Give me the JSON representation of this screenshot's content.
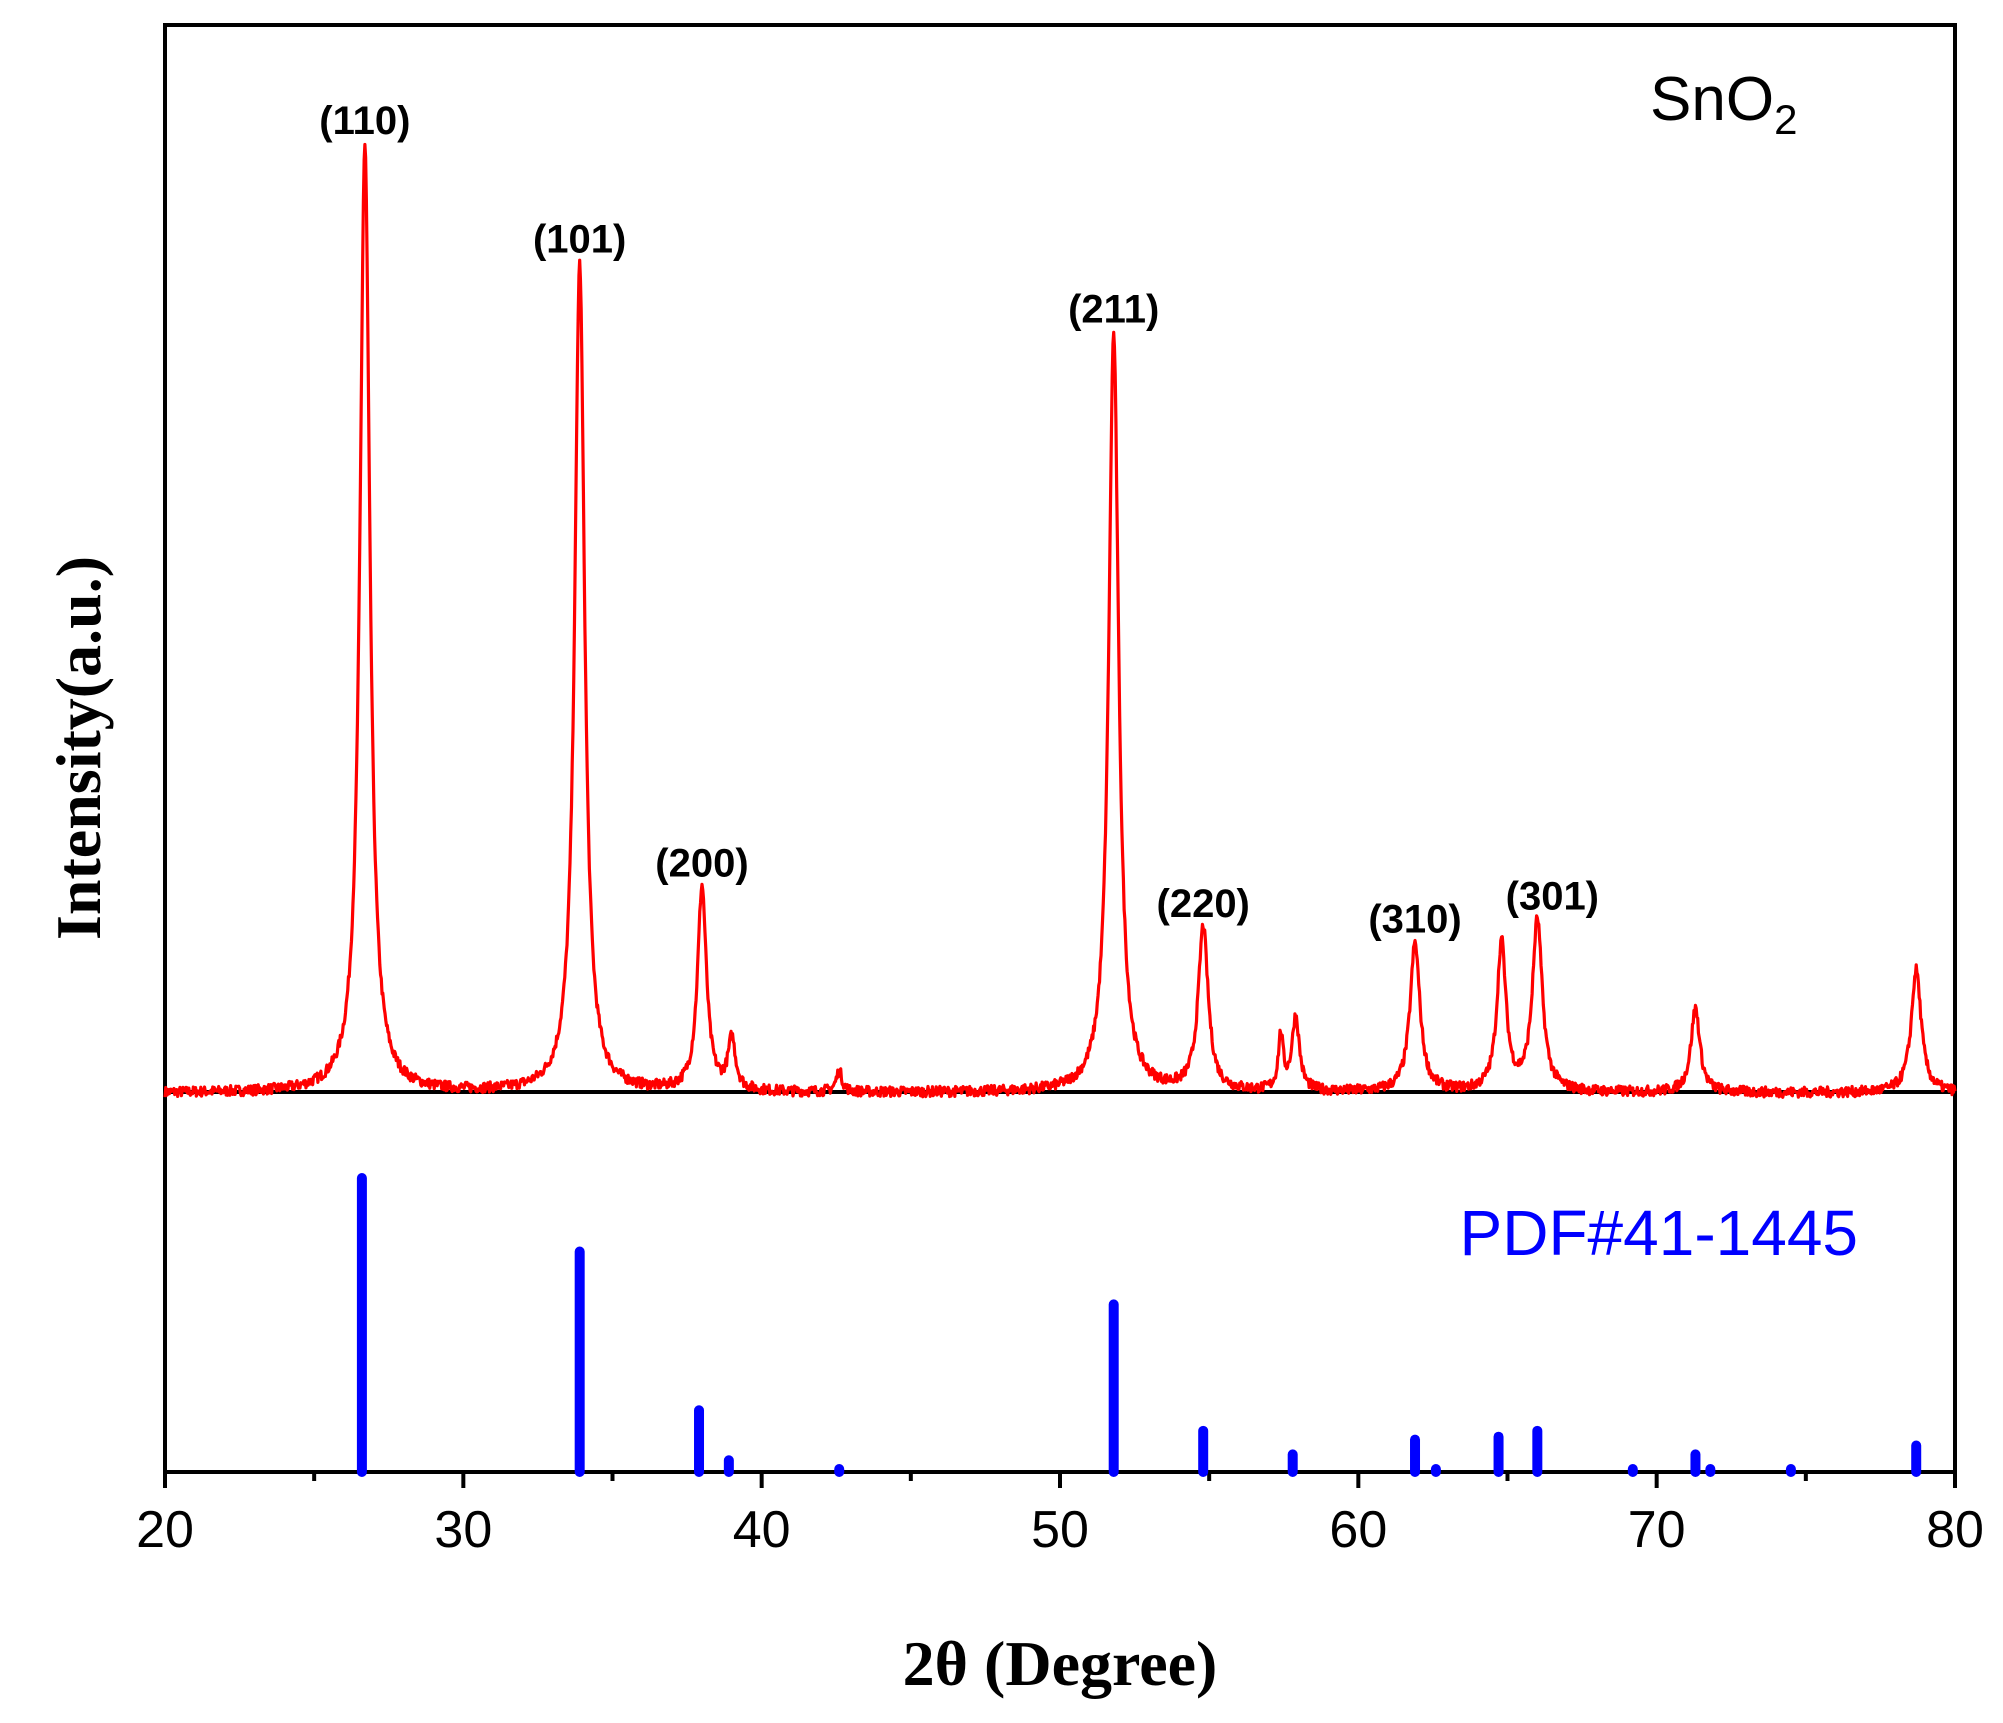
{
  "chart_data": {
    "type": "line",
    "title": "",
    "xlabel": "2θ (Degree)",
    "ylabel": "Intensity(a.u.)",
    "xlim": [
      20,
      80
    ],
    "x_ticks": [
      20,
      30,
      40,
      50,
      60,
      70,
      80
    ],
    "x_tick_labels": [
      "20",
      "30",
      "40",
      "50",
      "60",
      "70",
      "80"
    ],
    "sample_label": {
      "main": "SnO",
      "subscript": "2"
    },
    "reference_label": "PDF#41-1445",
    "colors": {
      "sample": "#ff0000",
      "reference": "#0000ff",
      "axis": "#000000"
    },
    "series": [
      {
        "name": "SnO2",
        "color": "#ff0000",
        "baseline": 0,
        "peaks": [
          {
            "x": 26.7,
            "y": 100,
            "width": 0.2,
            "hkl": "(110)"
          },
          {
            "x": 33.9,
            "y": 87.5,
            "width": 0.2,
            "hkl": "(101)"
          },
          {
            "x": 38.0,
            "y": 21.6,
            "width": 0.18,
            "hkl": "(200)"
          },
          {
            "x": 39.0,
            "y": 5.3,
            "width": 0.15,
            "hkl": ""
          },
          {
            "x": 42.6,
            "y": 2.2,
            "width": 0.12,
            "hkl": ""
          },
          {
            "x": 51.8,
            "y": 80.1,
            "width": 0.2,
            "hkl": "(211)"
          },
          {
            "x": 54.8,
            "y": 17.3,
            "width": 0.2,
            "hkl": "(220)"
          },
          {
            "x": 57.4,
            "y": 5.7,
            "width": 0.1,
            "hkl": ""
          },
          {
            "x": 57.9,
            "y": 7.8,
            "width": 0.15,
            "hkl": ""
          },
          {
            "x": 61.9,
            "y": 15.7,
            "width": 0.2,
            "hkl": "(310)"
          },
          {
            "x": 64.8,
            "y": 15.7,
            "width": 0.18,
            "hkl": ""
          },
          {
            "x": 66.0,
            "y": 18.1,
            "width": 0.2,
            "hkl": "(301)"
          },
          {
            "x": 71.3,
            "y": 8.9,
            "width": 0.18,
            "hkl": ""
          },
          {
            "x": 78.7,
            "y": 13.0,
            "width": 0.2,
            "hkl": ""
          }
        ]
      },
      {
        "name": "PDF#41-1445",
        "color": "#0000ff",
        "type": "stick",
        "x": [
          26.6,
          33.9,
          37.9,
          38.9,
          42.6,
          51.8,
          54.8,
          57.8,
          61.9,
          62.6,
          64.7,
          66.0,
          69.2,
          71.3,
          71.8,
          74.5,
          78.7
        ],
        "values": [
          100,
          75,
          21,
          4,
          1,
          57,
          14,
          6,
          11,
          1,
          12,
          14,
          1,
          6,
          1,
          1,
          9
        ]
      }
    ],
    "annotations": [
      "(110)",
      "(101)",
      "(200)",
      "(211)",
      "(220)",
      "(310)",
      "(301)"
    ]
  }
}
